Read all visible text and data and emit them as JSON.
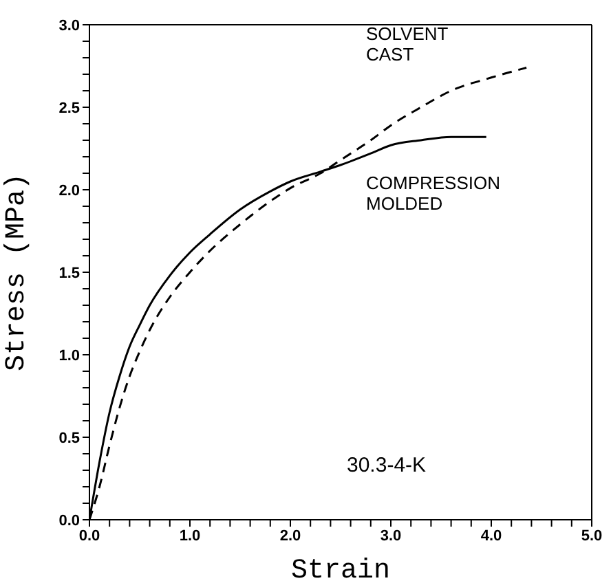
{
  "chart_data": {
    "type": "line",
    "xlabel": "Strain",
    "ylabel": "Stress (MPa)",
    "annotations": [
      "30.3-4-K"
    ],
    "xlim": [
      0,
      5
    ],
    "ylim": [
      0,
      3
    ],
    "xticks": [
      {
        "value": 0,
        "label": "0.0"
      },
      {
        "value": 0.2,
        "label": null
      },
      {
        "value": 0.4,
        "label": null
      },
      {
        "value": 0.6,
        "label": null
      },
      {
        "value": 0.8,
        "label": null
      },
      {
        "value": 1,
        "label": "1.0"
      },
      {
        "value": 1.2,
        "label": null
      },
      {
        "value": 1.4,
        "label": null
      },
      {
        "value": 1.6,
        "label": null
      },
      {
        "value": 1.8,
        "label": null
      },
      {
        "value": 2,
        "label": "2.0"
      },
      {
        "value": 2.2,
        "label": null
      },
      {
        "value": 2.4,
        "label": null
      },
      {
        "value": 2.6,
        "label": null
      },
      {
        "value": 2.8,
        "label": null
      },
      {
        "value": 3,
        "label": "3.0"
      },
      {
        "value": 3.2,
        "label": null
      },
      {
        "value": 3.4,
        "label": null
      },
      {
        "value": 3.6,
        "label": null
      },
      {
        "value": 3.8,
        "label": null
      },
      {
        "value": 4,
        "label": "4.0"
      },
      {
        "value": 4.2,
        "label": null
      },
      {
        "value": 4.4,
        "label": null
      },
      {
        "value": 4.6,
        "label": null
      },
      {
        "value": 4.8,
        "label": null
      },
      {
        "value": 5,
        "label": "5.0"
      }
    ],
    "yticks": [
      {
        "value": 0,
        "label": "0.0"
      },
      {
        "value": 0.1,
        "label": null
      },
      {
        "value": 0.2,
        "label": null
      },
      {
        "value": 0.3,
        "label": null
      },
      {
        "value": 0.4,
        "label": null
      },
      {
        "value": 0.5,
        "label": "0.5"
      },
      {
        "value": 0.6,
        "label": null
      },
      {
        "value": 0.7,
        "label": null
      },
      {
        "value": 0.8,
        "label": null
      },
      {
        "value": 0.9,
        "label": null
      },
      {
        "value": 1,
        "label": "1.0"
      },
      {
        "value": 1.1,
        "label": null
      },
      {
        "value": 1.2,
        "label": null
      },
      {
        "value": 1.3,
        "label": null
      },
      {
        "value": 1.4,
        "label": null
      },
      {
        "value": 1.5,
        "label": "1.5"
      },
      {
        "value": 1.6,
        "label": null
      },
      {
        "value": 1.7,
        "label": null
      },
      {
        "value": 1.8,
        "label": null
      },
      {
        "value": 1.9,
        "label": null
      },
      {
        "value": 2,
        "label": "2.0"
      },
      {
        "value": 2.1,
        "label": null
      },
      {
        "value": 2.2,
        "label": null
      },
      {
        "value": 2.3,
        "label": null
      },
      {
        "value": 2.4,
        "label": null
      },
      {
        "value": 2.5,
        "label": "2.5"
      },
      {
        "value": 2.6,
        "label": null
      },
      {
        "value": 2.7,
        "label": null
      },
      {
        "value": 2.8,
        "label": null
      },
      {
        "value": 2.9,
        "label": null
      },
      {
        "value": 3,
        "label": "3.0"
      }
    ],
    "marker": "none",
    "series": [
      {
        "name": "COMPRESSION MOLDED",
        "color": "#000000",
        "line_style": "solid",
        "x": [
          0,
          0.1,
          0.2,
          0.3,
          0.4,
          0.5,
          0.6,
          0.8,
          1.0,
          1.2,
          1.5,
          1.8,
          2.0,
          2.3,
          2.5,
          2.8,
          3.0,
          3.3,
          3.6,
          3.95
        ],
        "values": [
          0,
          0.35,
          0.65,
          0.87,
          1.05,
          1.18,
          1.3,
          1.48,
          1.62,
          1.73,
          1.88,
          1.99,
          2.05,
          2.11,
          2.15,
          2.22,
          2.27,
          2.3,
          2.32,
          2.32
        ]
      },
      {
        "name": "SOLVENT CAST",
        "color": "#000000",
        "line_style": "dashed",
        "x": [
          0,
          0.1,
          0.2,
          0.3,
          0.4,
          0.5,
          0.6,
          0.8,
          1.0,
          1.2,
          1.5,
          1.8,
          2.0,
          2.3,
          2.5,
          2.8,
          3.0,
          3.3,
          3.6,
          4.0,
          4.35
        ],
        "values": [
          0,
          0.2,
          0.45,
          0.68,
          0.87,
          1.02,
          1.15,
          1.35,
          1.5,
          1.63,
          1.79,
          1.93,
          2.01,
          2.1,
          2.18,
          2.3,
          2.39,
          2.5,
          2.6,
          2.68,
          2.74
        ]
      }
    ]
  }
}
